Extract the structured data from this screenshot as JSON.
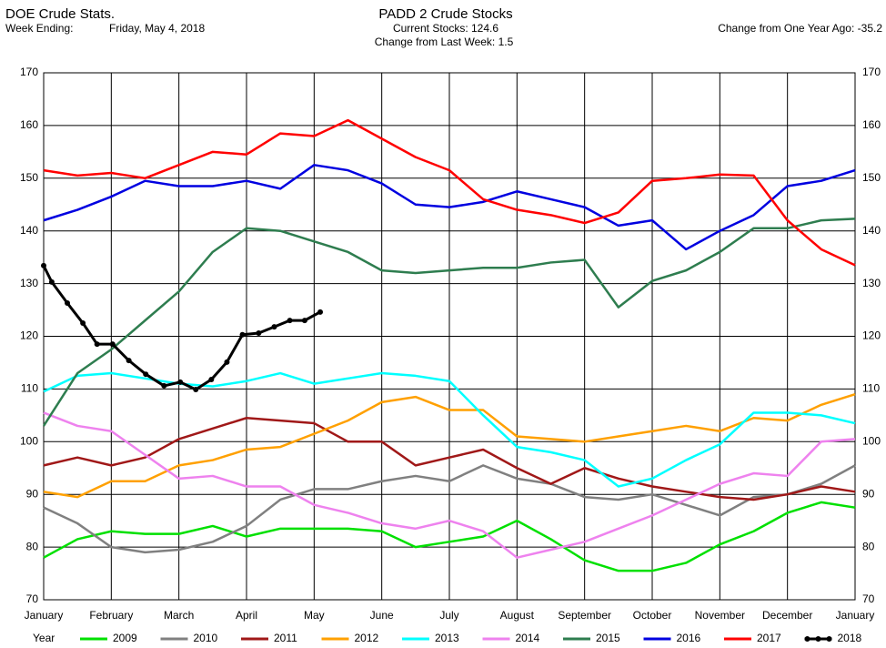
{
  "chart_data": {
    "type": "line",
    "title": "DOE Crude Stats.",
    "week_label": "Week Ending:",
    "week_date": "Friday, May 4, 2018",
    "subtitle": "PADD 2 Crude Stocks",
    "current": "Current Stocks: 124.6",
    "weekly_change": "Change from Last Week:   1.5",
    "yearly_change": "Change from One Year Ago: -35.2",
    "legend_title": "Year",
    "xlim": [
      0,
      12
    ],
    "xticks": [
      {
        "value": 0,
        "label": "January"
      },
      {
        "value": 1,
        "label": "February"
      },
      {
        "value": 2,
        "label": "March"
      },
      {
        "value": 3,
        "label": "April"
      },
      {
        "value": 4,
        "label": "May"
      },
      {
        "value": 5,
        "label": "June"
      },
      {
        "value": 6,
        "label": "July"
      },
      {
        "value": 7,
        "label": "August"
      },
      {
        "value": 8,
        "label": "September"
      },
      {
        "value": 9,
        "label": "October"
      },
      {
        "value": 10,
        "label": "November"
      },
      {
        "value": 11,
        "label": "December"
      },
      {
        "value": 12,
        "label": "January"
      }
    ],
    "ylim": [
      70,
      170
    ],
    "yticks": [
      70,
      80,
      90,
      100,
      110,
      120,
      130,
      140,
      150,
      160,
      170
    ],
    "grid": true,
    "x": [
      0,
      0.5,
      1,
      1.5,
      2,
      2.5,
      3,
      3.5,
      4,
      4.5,
      5,
      5.5,
      6,
      6.5,
      7,
      7.5,
      8,
      8.5,
      9,
      9.5,
      10,
      10.5,
      11,
      11.5,
      12
    ],
    "series": [
      {
        "name": "2009",
        "color": "#00e000",
        "values": [
          78,
          81.5,
          83,
          82.5,
          82.5,
          84,
          82,
          83.5,
          83.5,
          83.5,
          83,
          80,
          81,
          82,
          85,
          81.5,
          77.5,
          75.5,
          75.5,
          77,
          80.5,
          83,
          86.5,
          88.5,
          87.5
        ]
      },
      {
        "name": "2010",
        "color": "#808080",
        "values": [
          87.5,
          84.5,
          80,
          79,
          79.5,
          81,
          84,
          89,
          91,
          91,
          92.5,
          93.5,
          92.5,
          95.5,
          93,
          92,
          89.5,
          89,
          90,
          88,
          86,
          89.5,
          90,
          92,
          95.5
        ]
      },
      {
        "name": "2011",
        "color": "#a01818",
        "values": [
          95.5,
          97,
          95.5,
          97,
          100.5,
          102.5,
          104.5,
          104,
          103.5,
          100,
          100,
          95.5,
          97,
          98.5,
          95,
          92,
          95,
          93,
          91.5,
          90.5,
          89.5,
          89,
          90,
          91.5,
          90.5
        ]
      },
      {
        "name": "2012",
        "color": "#ffa000",
        "values": [
          90.5,
          89.5,
          92.5,
          92.5,
          95.5,
          96.5,
          98.5,
          99,
          101.5,
          104,
          107.5,
          108.5,
          106,
          106,
          101,
          100.5,
          100,
          101,
          102,
          103,
          102,
          104.5,
          104,
          107,
          109
        ]
      },
      {
        "name": "2013",
        "color": "#00ffff",
        "values": [
          109.5,
          112.5,
          113,
          112,
          111,
          110.5,
          111.5,
          113,
          111,
          112,
          113,
          112.5,
          111.5,
          105,
          99,
          98,
          96.5,
          91.5,
          93,
          96.5,
          99.5,
          105.5,
          105.5,
          105,
          103.5
        ]
      },
      {
        "name": "2014",
        "color": "#ee82ee",
        "values": [
          105.5,
          103,
          102,
          97.5,
          93,
          93.5,
          91.5,
          91.5,
          88,
          86.5,
          84.5,
          83.5,
          85,
          83,
          78,
          79.5,
          81,
          83.5,
          86,
          89,
          92,
          94,
          93.5,
          100,
          100.5
        ]
      },
      {
        "name": "2015",
        "color": "#2e7d4f",
        "values": [
          103,
          113,
          117.5,
          123,
          128.5,
          136,
          140.5,
          140,
          138,
          136,
          132.5,
          132,
          132.5,
          133,
          133,
          134,
          134.5,
          125.5,
          130.5,
          132.5,
          136,
          140.5,
          140.5,
          142,
          142.3
        ]
      },
      {
        "name": "2016",
        "color": "#0000e0",
        "values": [
          142,
          144,
          146.5,
          149.5,
          148.5,
          148.5,
          149.5,
          148,
          152.5,
          151.5,
          149,
          145,
          144.5,
          145.5,
          147.5,
          146,
          144.5,
          141,
          142,
          136.5,
          140,
          143,
          148.5,
          149.5,
          151.5
        ]
      },
      {
        "name": "2017",
        "color": "#ff0000",
        "values": [
          151.5,
          150.5,
          151,
          150,
          152.5,
          155,
          154.5,
          158.5,
          158,
          161,
          157.5,
          154,
          151.5,
          146,
          144,
          143,
          141.5,
          143.5,
          149.5,
          150,
          150.7,
          150.5,
          142,
          136.5,
          133.5
        ]
      },
      {
        "name": "2018",
        "color": "#000000",
        "markers": true,
        "x": [
          0,
          0.12,
          0.35,
          0.58,
          0.79,
          1.02,
          1.26,
          1.51,
          1.78,
          2.02,
          2.25,
          2.48,
          2.71,
          2.94,
          3.18,
          3.41,
          3.64,
          3.86,
          4.09
        ],
        "values": [
          133.4,
          130.3,
          126.3,
          122.5,
          118.5,
          118.5,
          115.4,
          112.8,
          110.6,
          111.3,
          109.9,
          111.8,
          115.1,
          120.3,
          120.6,
          121.8,
          123,
          123,
          124.6
        ]
      }
    ]
  }
}
